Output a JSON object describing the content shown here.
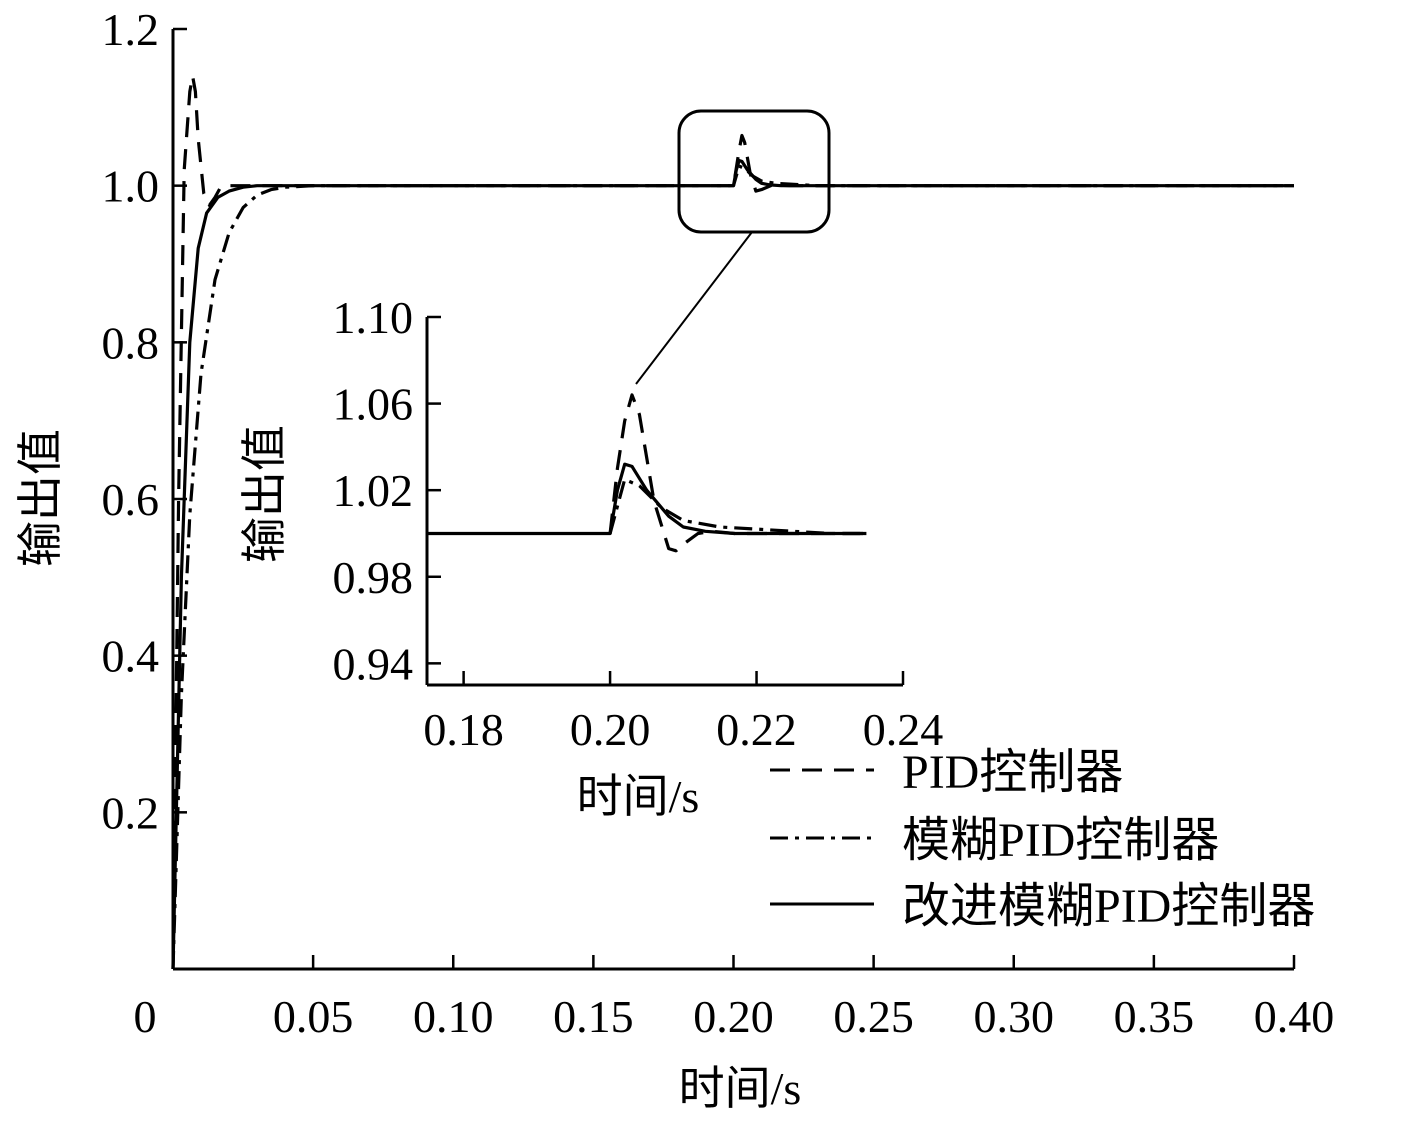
{
  "chart_data": [
    {
      "type": "line",
      "title": "",
      "xlabel": "时间/s",
      "ylabel": "输出值",
      "xlim": [
        0,
        0.4
      ],
      "ylim": [
        0,
        1.2
      ],
      "xticks": [
        "0",
        "0.05",
        "0.10",
        "0.15",
        "0.20",
        "0.25",
        "0.30",
        "0.35",
        "0.40"
      ],
      "yticks": [
        "0.2",
        "0.4",
        "0.6",
        "0.8",
        "1.0",
        "1.2"
      ],
      "grid": false,
      "legend": "bottom-right",
      "series": [
        {
          "name": "PID控制器",
          "style": "dashed",
          "x": [
            0,
            0.002,
            0.004,
            0.006,
            0.007,
            0.008,
            0.009,
            0.011,
            0.013,
            0.015,
            0.017,
            0.02,
            0.025,
            0.05,
            0.198,
            0.2,
            0.202,
            0.203,
            0.204,
            0.206,
            0.208,
            0.21,
            0.214,
            0.22,
            0.4
          ],
          "y": [
            0,
            0.6,
            1.02,
            1.12,
            1.14,
            1.12,
            1.06,
            0.99,
            0.975,
            0.985,
            0.998,
            1.0,
            1.0,
            1.0,
            1.0,
            1.0,
            1.045,
            1.064,
            1.055,
            1.015,
            0.993,
            0.995,
            1.001,
            1.0,
            1.0
          ]
        },
        {
          "name": "模糊PID控制器",
          "style": "dash-dot",
          "x": [
            0,
            0.003,
            0.006,
            0.01,
            0.015,
            0.02,
            0.025,
            0.03,
            0.035,
            0.04,
            0.05,
            0.2,
            0.202,
            0.204,
            0.207,
            0.21,
            0.215,
            0.22,
            0.225,
            0.23,
            0.235,
            0.4
          ],
          "y": [
            0,
            0.35,
            0.58,
            0.76,
            0.88,
            0.94,
            0.972,
            0.988,
            0.995,
            0.998,
            1.0,
            1.0,
            1.025,
            1.022,
            1.012,
            1.006,
            1.003,
            1.002,
            1.001,
            1.0,
            1.0,
            1.0
          ]
        },
        {
          "name": "改进模糊PID控制器",
          "style": "solid",
          "x": [
            0,
            0.003,
            0.006,
            0.009,
            0.012,
            0.016,
            0.02,
            0.025,
            0.03,
            0.04,
            0.05,
            0.2,
            0.201,
            0.202,
            0.203,
            0.205,
            0.208,
            0.21,
            0.213,
            0.217,
            0.22,
            0.23,
            0.4
          ],
          "y": [
            0,
            0.5,
            0.8,
            0.92,
            0.965,
            0.985,
            0.993,
            0.998,
            1.0,
            1.0,
            1.0,
            1.0,
            1.02,
            1.032,
            1.031,
            1.02,
            1.008,
            1.003,
            1.001,
            1.0,
            1.0,
            1.0,
            1.0
          ]
        }
      ]
    },
    {
      "type": "line",
      "title": "",
      "xlabel": "时间/s",
      "ylabel": "输出值",
      "xlim": [
        0.175,
        0.24
      ],
      "ylim": [
        0.93,
        1.1
      ],
      "xticks": [
        "0.18",
        "0.20",
        "0.22",
        "0.24"
      ],
      "yticks": [
        "0.94",
        "0.98",
        "1.02",
        "1.06",
        "1.10"
      ],
      "grid": false,
      "series": [
        {
          "name": "PID控制器",
          "style": "dashed",
          "x": [
            0.2,
            0.201,
            0.202,
            0.203,
            0.204,
            0.206,
            0.208,
            0.209,
            0.21,
            0.212,
            0.214,
            0.217,
            0.22,
            0.235
          ],
          "y": [
            1.0,
            1.03,
            1.052,
            1.064,
            1.055,
            1.015,
            0.993,
            0.992,
            0.995,
            1.0,
            1.001,
            1.0,
            1.0,
            1.0
          ]
        },
        {
          "name": "模糊PID控制器",
          "style": "dash-dot",
          "x": [
            0.2,
            0.202,
            0.204,
            0.207,
            0.21,
            0.215,
            0.22,
            0.225,
            0.23,
            0.235
          ],
          "y": [
            1.0,
            1.025,
            1.022,
            1.012,
            1.006,
            1.003,
            1.002,
            1.001,
            1.0,
            1.0
          ]
        },
        {
          "name": "改进模糊PID控制器",
          "style": "solid",
          "x": [
            0.175,
            0.2,
            0.201,
            0.202,
            0.203,
            0.205,
            0.208,
            0.21,
            0.213,
            0.217,
            0.22,
            0.235
          ],
          "y": [
            1.0,
            1.0,
            1.02,
            1.032,
            1.031,
            1.02,
            1.008,
            1.003,
            1.001,
            1.0,
            1.0,
            1.0
          ]
        }
      ]
    }
  ]
}
